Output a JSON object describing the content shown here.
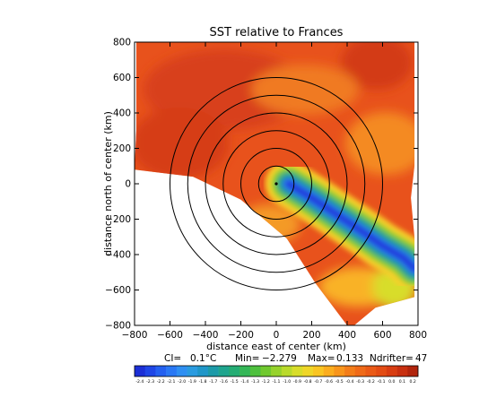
{
  "chart_data": {
    "type": "heatmap",
    "title": "SST relative to Frances",
    "xlabel": "distance east of center (km)",
    "ylabel": "distance north of center (km)",
    "xlim": [
      -800,
      800
    ],
    "ylim": [
      -800,
      800
    ],
    "x_ticks": [
      "−800",
      "−600",
      "−400",
      "−200",
      "0",
      "200",
      "400",
      "600",
      "800"
    ],
    "y_ticks": [
      "800",
      "600",
      "400",
      "200",
      "0",
      "−200",
      "−400",
      "−600",
      "−800"
    ],
    "x_tick_values": [
      -800,
      -600,
      -400,
      -200,
      0,
      200,
      400,
      600,
      800
    ],
    "y_tick_values": [
      800,
      600,
      400,
      200,
      0,
      -200,
      -400,
      -600,
      -800
    ],
    "range_rings_km": [
      100,
      200,
      300,
      400,
      500,
      600
    ],
    "storm_center": [
      0,
      0
    ],
    "data_region_polygon": [
      [
        -790,
        800
      ],
      [
        780,
        800
      ],
      [
        780,
        100
      ],
      [
        760,
        -80
      ],
      [
        780,
        -300
      ],
      [
        780,
        -640
      ],
      [
        560,
        -700
      ],
      [
        440,
        -800
      ],
      [
        400,
        -800
      ],
      [
        220,
        -560
      ],
      [
        60,
        -310
      ],
      [
        -200,
        -90
      ],
      [
        -470,
        40
      ],
      [
        -800,
        80
      ],
      [
        -790,
        300
      ]
    ],
    "cold_wake": {
      "min_value": -2.279,
      "path_km": [
        [
          70,
          0
        ],
        [
          200,
          -80
        ],
        [
          350,
          -180
        ],
        [
          500,
          -280
        ],
        [
          600,
          -350
        ],
        [
          720,
          -420
        ],
        [
          780,
          -480
        ]
      ],
      "half_width_km": 90
    },
    "stats": {
      "ci_label": "CI=",
      "ci_value": "0.1°C",
      "min_label": "Min=",
      "min_value": "−2.279",
      "max_label": "Max=",
      "max_value": "0.133",
      "ndrifter_label": "Ndrifter=",
      "ndrifter_value": "47"
    },
    "colorbar": {
      "labels": [
        "-2.4",
        "-2.3",
        "-2.2",
        "-2.1",
        "-2.0",
        "-1.9",
        "-1.8",
        "-1.7",
        "-1.6",
        "-1.5",
        "-1.4",
        "-1.3",
        "-1.2",
        "-1.1",
        "-1.0",
        "-0.9",
        "-0.8",
        "-0.7",
        "-0.6",
        "-0.5",
        "-0.4",
        "-0.3",
        "-0.2",
        "-0.1",
        "0.0",
        "0.1",
        "0.2"
      ],
      "colors": [
        "#1c2fd6",
        "#1f46e6",
        "#2460f0",
        "#2a78f4",
        "#2f8ff2",
        "#2a9be0",
        "#1f96c8",
        "#1c9aa8",
        "#1fa58e",
        "#25ad74",
        "#34b657",
        "#4ec03e",
        "#70c92f",
        "#96d22c",
        "#b9da2b",
        "#d8dd2a",
        "#efd628",
        "#f9c522",
        "#fbad1e",
        "#f8951b",
        "#f37d19",
        "#ef6a18",
        "#ea5a16",
        "#e34c14",
        "#d83d12",
        "#c83010",
        "#b1250d"
      ]
    },
    "grid": false,
    "legend": "colorbar-bottom"
  }
}
